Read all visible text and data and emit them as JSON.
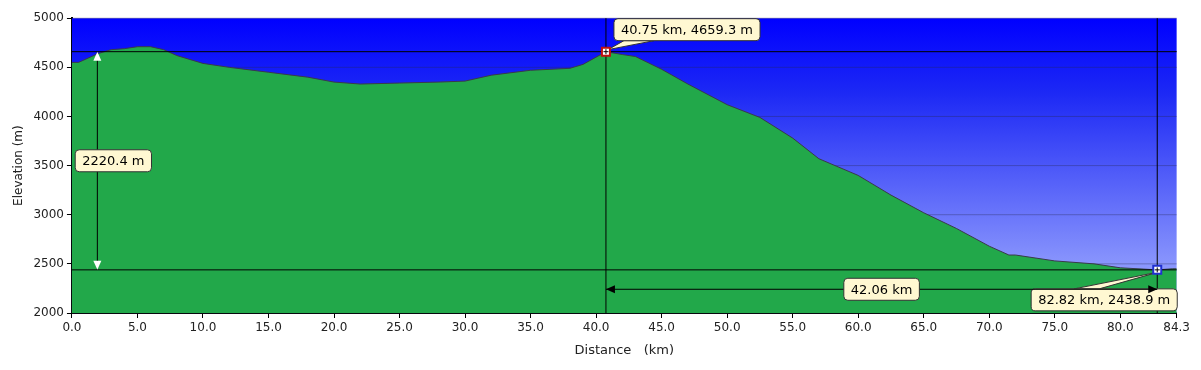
{
  "chart_data": {
    "type": "area",
    "xlabel": "Distance   (km)",
    "ylabel": "Elevation (m)",
    "xlim": [
      0,
      84.3
    ],
    "ylim": [
      2000,
      5000
    ],
    "xticks": [
      {
        "value": 0,
        "label": "0.0"
      },
      {
        "value": 5,
        "label": "5.0"
      },
      {
        "value": 10,
        "label": "10.0"
      },
      {
        "value": 15,
        "label": "15.0"
      },
      {
        "value": 20,
        "label": "20.0"
      },
      {
        "value": 25,
        "label": "25.0"
      },
      {
        "value": 30,
        "label": "30.0"
      },
      {
        "value": 35,
        "label": "35.0"
      },
      {
        "value": 40,
        "label": "40.0"
      },
      {
        "value": 45,
        "label": "45.0"
      },
      {
        "value": 50,
        "label": "50.0"
      },
      {
        "value": 55,
        "label": "55.0"
      },
      {
        "value": 60,
        "label": "60.0"
      },
      {
        "value": 65,
        "label": "65.0"
      },
      {
        "value": 70,
        "label": "70.0"
      },
      {
        "value": 75,
        "label": "75.0"
      },
      {
        "value": 80,
        "label": "80.0"
      },
      84.3
    ],
    "yticks": [
      2000,
      2500,
      3000,
      3500,
      4000,
      4500,
      5000
    ],
    "grid": "y",
    "legend": false,
    "x": [
      0,
      0.5,
      1,
      2,
      3,
      4,
      5,
      6,
      7,
      8,
      9,
      10,
      12,
      15,
      18,
      20,
      22,
      25,
      28,
      30,
      32,
      35,
      38,
      39,
      40.75,
      42,
      43,
      45,
      47,
      50,
      52.5,
      55,
      57,
      60,
      62.5,
      65,
      67.5,
      70,
      71.5,
      72,
      75,
      78,
      80,
      82.82,
      84,
      84.3
    ],
    "series": [
      {
        "color": "#22a84a",
        "values": [
          4550,
          4550,
          4580,
          4640,
          4680,
          4690,
          4710,
          4710,
          4680,
          4620,
          4580,
          4540,
          4500,
          4450,
          4400,
          4350,
          4330,
          4340,
          4350,
          4360,
          4420,
          4470,
          4490,
          4530,
          4659.3,
          4630,
          4610,
          4480,
          4330,
          4120,
          3990,
          3780,
          3570,
          3400,
          3200,
          3020,
          2860,
          2680,
          2590,
          2590,
          2530,
          2500,
          2460,
          2438.9,
          2450,
          2450
        ]
      }
    ],
    "ref_lines": [
      {
        "axis": "y",
        "value": 4659.3
      },
      {
        "axis": "y",
        "value": 2438.9
      },
      {
        "axis": "x",
        "value": 40.75
      },
      {
        "axis": "x",
        "value": 82.82
      }
    ],
    "annotations": [
      {
        "text": "40.75 km, 4659.3 m",
        "x": 40.75,
        "y": 4659.3
      },
      {
        "text": "82.82 km, 2438.9 m",
        "x": 82.82,
        "y": 2438.9
      },
      "2220.4 m",
      "42.06 km"
    ]
  }
}
